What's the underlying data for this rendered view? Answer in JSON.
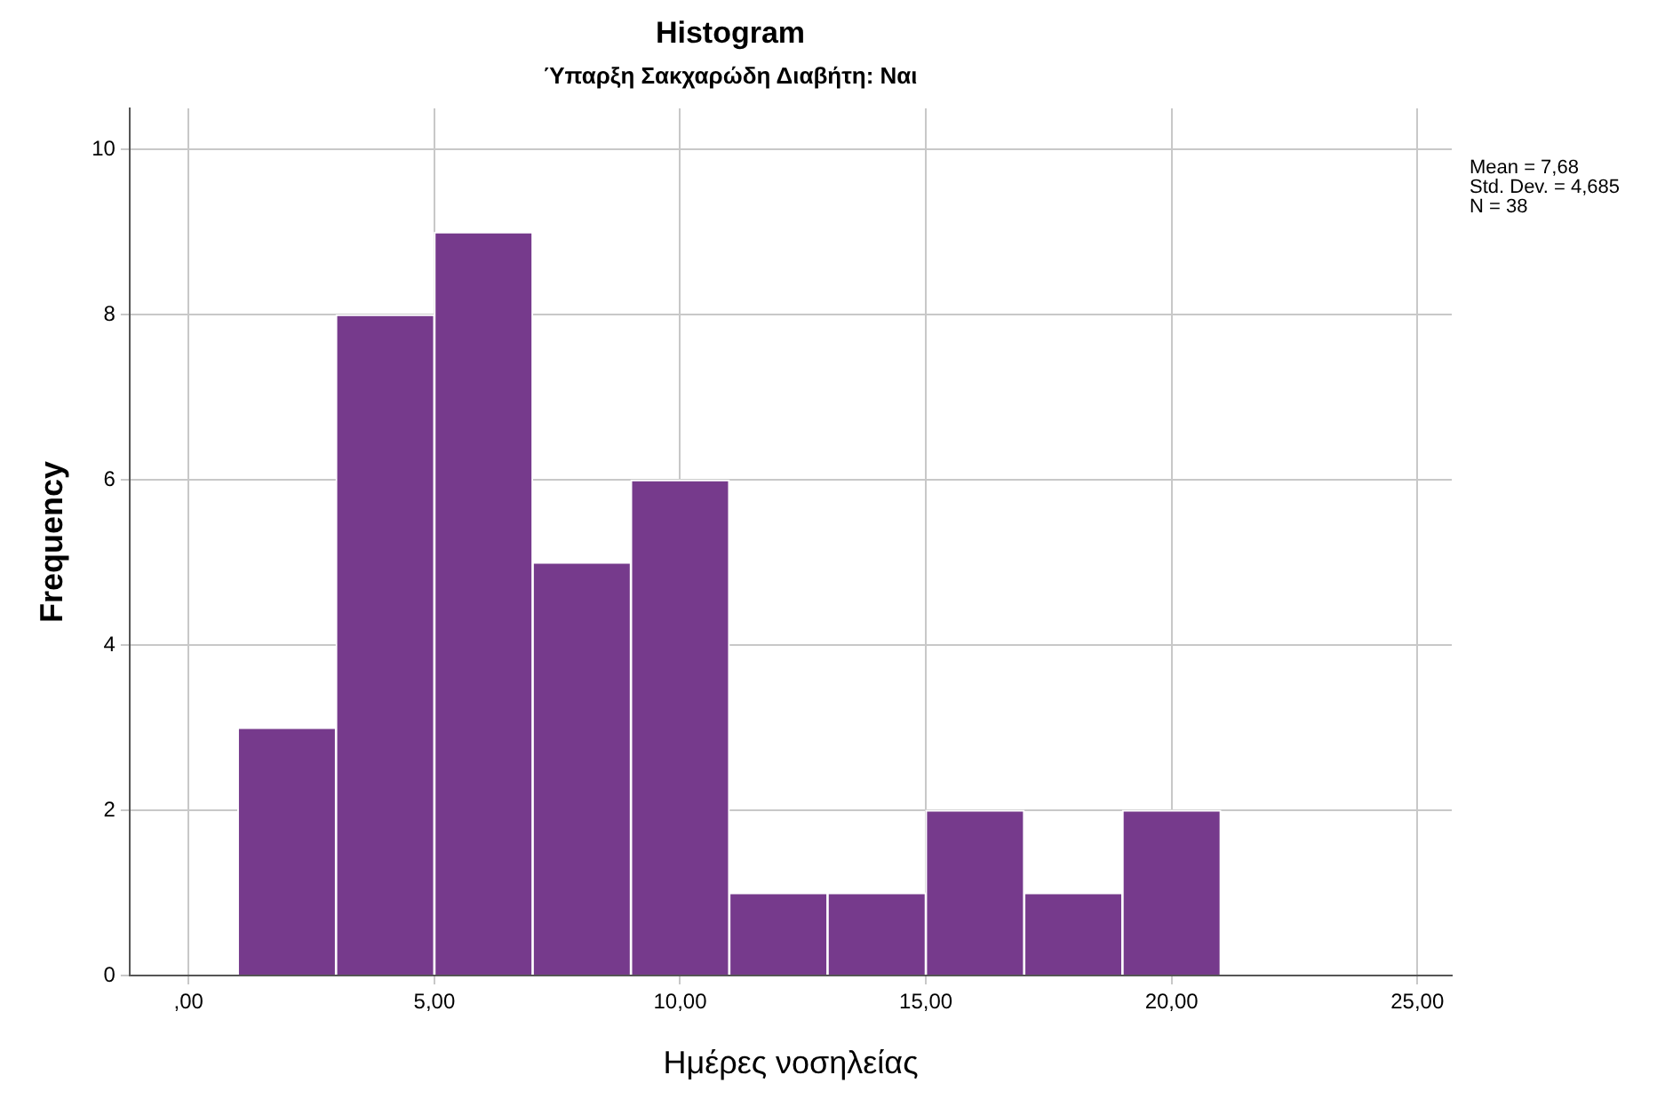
{
  "chart_data": {
    "type": "histogram",
    "title": "Histogram",
    "subtitle": "Ύπαρξη Σακχαρώδη Διαβήτη: Ναι",
    "xlabel": "Ημέρες νοσηλείας",
    "ylabel": "Frequency",
    "bins": [
      1,
      3,
      5,
      7,
      9,
      11,
      13,
      15,
      17,
      19,
      21
    ],
    "values": [
      3,
      8,
      9,
      5,
      6,
      1,
      1,
      2,
      1,
      2
    ],
    "color": "#763a8c",
    "xlim": [
      -1.2,
      25.7
    ],
    "ylim": [
      0,
      10.5
    ],
    "xticks": [
      {
        "value": 0,
        "label": ",00"
      },
      {
        "value": 5,
        "label": "5,00"
      },
      {
        "value": 10,
        "label": "10,00"
      },
      {
        "value": 15,
        "label": "15,00"
      },
      {
        "value": 20,
        "label": "20,00"
      },
      {
        "value": 25,
        "label": "25,00"
      }
    ],
    "yticks": [
      0,
      2,
      4,
      6,
      8,
      10
    ],
    "grid": true,
    "annotations": [
      "Mean = 7,68",
      "Std. Dev. = 4,685",
      "N = 38"
    ]
  }
}
